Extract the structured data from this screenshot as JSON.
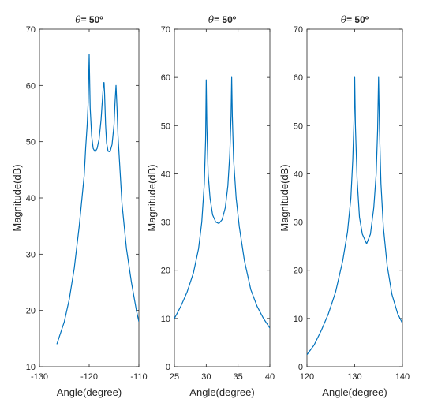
{
  "figure": {
    "title_symbol": "θ",
    "title_value": "= 50º",
    "line_color": "#0072BD"
  },
  "chart_data": [
    {
      "type": "line",
      "title": "θ= 50º",
      "xlabel": "Angle(degree)",
      "ylabel": "Magnitude(dB)",
      "xlim": [
        -130,
        -110
      ],
      "ylim": [
        10,
        70
      ],
      "xticks": [
        -130,
        -120,
        -110
      ],
      "xtick_labels": [
        "-130",
        "-120",
        "-110"
      ],
      "yticks": [
        10,
        20,
        30,
        40,
        50,
        60,
        70
      ],
      "ytick_labels": [
        "10",
        "20",
        "30",
        "40",
        "50",
        "60",
        "70"
      ],
      "series": [
        {
          "x": [
            -126.5,
            -125,
            -124,
            -123,
            -122,
            -121,
            -120.7,
            -120.4,
            -120.2,
            -120,
            -119.8,
            -119.5,
            -119.2,
            -118.8,
            -118.4,
            -118,
            -117.6,
            -117.3,
            -117.1,
            -117,
            -116.9,
            -116.7,
            -116.5,
            -116.2,
            -115.8,
            -115.4,
            -115,
            -114.8,
            -114.6,
            -114.4,
            -114.2,
            -113.8,
            -113.4,
            -112.5,
            -111.5,
            -110.5,
            -110
          ],
          "y": [
            14,
            18,
            22,
            27.5,
            35,
            44,
            49,
            53,
            57,
            65.5,
            56,
            51,
            48.8,
            48.2,
            48.8,
            50.5,
            54,
            58,
            60.5,
            60.5,
            58.5,
            53,
            49.8,
            48.3,
            48.2,
            49.5,
            53,
            57,
            60,
            56,
            51,
            45,
            39,
            31,
            25,
            20,
            18
          ]
        }
      ]
    },
    {
      "type": "line",
      "title": "θ= 50º",
      "xlabel": "Angle(degree)",
      "ylabel": "Magnitude(dB)",
      "xlim": [
        25,
        40
      ],
      "ylim": [
        0,
        70
      ],
      "xticks": [
        25,
        30,
        35,
        40
      ],
      "xtick_labels": [
        "25",
        "30",
        "35",
        "40"
      ],
      "yticks": [
        0,
        10,
        20,
        30,
        40,
        50,
        60,
        70
      ],
      "ytick_labels": [
        "0",
        "10",
        "20",
        "30",
        "40",
        "50",
        "60",
        "70"
      ],
      "series": [
        {
          "x": [
            25,
            26,
            27,
            28,
            28.8,
            29.3,
            29.7,
            29.9,
            30,
            30.1,
            30.3,
            30.6,
            31,
            31.5,
            32,
            32.5,
            33,
            33.4,
            33.7,
            33.9,
            34,
            34.1,
            34.3,
            34.7,
            35.2,
            36,
            37,
            38,
            39,
            40
          ],
          "y": [
            10,
            12.5,
            15.5,
            19.5,
            24.5,
            30,
            38,
            47,
            59.5,
            50,
            40,
            35,
            31.5,
            30,
            29.7,
            30.5,
            33,
            37.5,
            44,
            52,
            60,
            52,
            43,
            35,
            29,
            22,
            16,
            12.5,
            10,
            8
          ]
        }
      ]
    },
    {
      "type": "line",
      "title": "θ= 50º",
      "xlabel": "Angle(degree)",
      "ylabel": "Magnitude(dB)",
      "xlim": [
        120,
        140
      ],
      "ylim": [
        0,
        70
      ],
      "xticks": [
        120,
        130,
        140
      ],
      "xtick_labels": [
        "120",
        "130",
        "140"
      ],
      "yticks": [
        0,
        10,
        20,
        30,
        40,
        50,
        60,
        70
      ],
      "ytick_labels": [
        "0",
        "10",
        "20",
        "30",
        "40",
        "50",
        "60",
        "70"
      ],
      "series": [
        {
          "x": [
            120,
            121.5,
            123,
            124.5,
            126,
            127.5,
            128.5,
            129.2,
            129.6,
            129.85,
            130,
            130.15,
            130.5,
            131,
            131.6,
            132.5,
            133.3,
            134,
            134.5,
            134.8,
            135,
            135.2,
            135.5,
            136,
            136.8,
            137.8,
            139,
            140
          ],
          "y": [
            2.5,
            4.5,
            7.5,
            11,
            15.5,
            22,
            28,
            35,
            43,
            51,
            60,
            50,
            39,
            31,
            27.5,
            25.5,
            27.5,
            33,
            40,
            49,
            60,
            49,
            38,
            29,
            21,
            15,
            11,
            9
          ]
        }
      ]
    }
  ]
}
